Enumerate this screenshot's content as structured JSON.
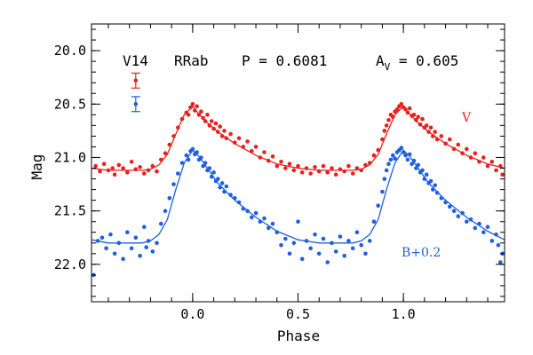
{
  "header": {
    "star": "V14",
    "type": "RRab",
    "period_text": "P = 0.6081",
    "amp_prefix": "A",
    "amp_sub": "V",
    "amp_value": " = 0.605"
  },
  "chart_data": {
    "type": "scatter",
    "xlabel": "Phase",
    "ylabel": "Mag",
    "xlim": [
      -0.48,
      1.48
    ],
    "ylim": [
      22.35,
      19.75
    ],
    "y_inverted": true,
    "x_ticks": [
      0.0,
      0.5,
      1.0
    ],
    "x_tick_labels": [
      "0.0",
      "0.5",
      "1.0"
    ],
    "x_minor_step": 0.1,
    "y_ticks": [
      20.0,
      20.5,
      21.0,
      21.5,
      22.0
    ],
    "y_tick_labels": [
      "20.0",
      "20.5",
      "21.0",
      "21.5",
      "22.0"
    ],
    "y_minor_step": 0.1,
    "legend_placement": "top-left",
    "series": [
      {
        "name": "V",
        "label": "V",
        "color": "#e8211c",
        "offset": 0.0,
        "curve": {
          "phase": [
            0.0,
            0.02,
            0.06,
            0.12,
            0.2,
            0.3,
            0.4,
            0.5,
            0.6,
            0.7,
            0.76,
            0.8,
            0.84,
            0.88,
            0.92,
            0.96,
            1.0
          ],
          "mag": [
            20.52,
            20.57,
            20.66,
            20.76,
            20.87,
            20.98,
            21.06,
            21.1,
            21.12,
            21.12,
            21.12,
            21.11,
            21.07,
            20.97,
            20.78,
            20.6,
            20.52
          ]
        },
        "error_bar": {
          "x": -0.27,
          "y": 20.28,
          "err": 0.07
        },
        "points": [
          [
            -0.46,
            21.08
          ],
          [
            -0.44,
            21.13
          ],
          [
            -0.42,
            21.06
          ],
          [
            -0.4,
            21.12
          ],
          [
            -0.38,
            21.1
          ],
          [
            -0.37,
            21.16
          ],
          [
            -0.35,
            21.07
          ],
          [
            -0.33,
            21.1
          ],
          [
            -0.31,
            21.14
          ],
          [
            -0.29,
            21.04
          ],
          [
            -0.27,
            21.11
          ],
          [
            -0.25,
            21.09
          ],
          [
            -0.23,
            21.15
          ],
          [
            -0.21,
            21.12
          ],
          [
            -0.19,
            21.08
          ],
          [
            -0.17,
            21.13
          ],
          [
            -0.15,
            21.02
          ],
          [
            -0.13,
            20.96
          ],
          [
            -0.11,
            20.88
          ],
          [
            -0.09,
            20.8
          ],
          [
            -0.07,
            20.72
          ],
          [
            -0.05,
            20.64
          ],
          [
            -0.03,
            20.58
          ],
          [
            -0.02,
            20.6
          ],
          [
            -0.01,
            20.53
          ],
          [
            0.0,
            20.5
          ],
          [
            0.01,
            20.56
          ],
          [
            0.02,
            20.52
          ],
          [
            0.03,
            20.6
          ],
          [
            0.04,
            20.57
          ],
          [
            0.05,
            20.63
          ],
          [
            0.06,
            20.66
          ],
          [
            0.07,
            20.6
          ],
          [
            0.08,
            20.7
          ],
          [
            0.09,
            20.66
          ],
          [
            0.1,
            20.73
          ],
          [
            0.11,
            20.68
          ],
          [
            0.12,
            20.76
          ],
          [
            0.13,
            20.71
          ],
          [
            0.14,
            20.8
          ],
          [
            0.15,
            20.75
          ],
          [
            0.16,
            20.82
          ],
          [
            0.18,
            20.78
          ],
          [
            0.2,
            20.86
          ],
          [
            0.22,
            20.82
          ],
          [
            0.24,
            20.9
          ],
          [
            0.26,
            20.85
          ],
          [
            0.28,
            20.94
          ],
          [
            0.3,
            20.9
          ],
          [
            0.32,
            21.0
          ],
          [
            0.34,
            20.95
          ],
          [
            0.36,
            21.03
          ],
          [
            0.38,
            20.99
          ],
          [
            0.4,
            21.08
          ],
          [
            0.42,
            21.04
          ],
          [
            0.44,
            21.1
          ],
          [
            0.46,
            21.06
          ],
          [
            0.48,
            21.12
          ],
          [
            0.5,
            21.08
          ],
          [
            0.52,
            21.14
          ],
          [
            0.54,
            21.1
          ],
          [
            0.56,
            21.15
          ],
          [
            0.58,
            21.09
          ],
          [
            0.6,
            21.13
          ],
          [
            0.62,
            21.08
          ],
          [
            0.64,
            21.14
          ],
          [
            0.66,
            21.1
          ],
          [
            0.68,
            21.16
          ],
          [
            0.7,
            21.11
          ],
          [
            0.72,
            21.13
          ],
          [
            0.74,
            21.08
          ],
          [
            0.76,
            21.15
          ],
          [
            0.78,
            21.1
          ],
          [
            0.8,
            21.12
          ],
          [
            0.82,
            21.07
          ],
          [
            0.84,
            21.05
          ],
          [
            0.86,
            20.98
          ],
          [
            0.88,
            20.93
          ],
          [
            0.9,
            20.83
          ],
          [
            0.91,
            20.75
          ],
          [
            0.92,
            20.7
          ],
          [
            0.93,
            20.65
          ],
          [
            0.94,
            20.6
          ],
          [
            0.95,
            20.62
          ],
          [
            0.96,
            20.57
          ],
          [
            0.97,
            20.55
          ],
          [
            0.98,
            20.52
          ],
          [
            0.99,
            20.5
          ],
          [
            1.0,
            20.53
          ],
          [
            1.01,
            20.55
          ],
          [
            1.02,
            20.58
          ],
          [
            1.03,
            20.54
          ],
          [
            1.04,
            20.61
          ],
          [
            1.05,
            20.6
          ],
          [
            1.06,
            20.65
          ],
          [
            1.07,
            20.62
          ],
          [
            1.08,
            20.69
          ],
          [
            1.09,
            20.64
          ],
          [
            1.1,
            20.72
          ],
          [
            1.11,
            20.7
          ],
          [
            1.12,
            20.76
          ],
          [
            1.13,
            20.72
          ],
          [
            1.14,
            20.8
          ],
          [
            1.15,
            20.76
          ],
          [
            1.16,
            20.83
          ],
          [
            1.18,
            20.8
          ],
          [
            1.2,
            20.87
          ],
          [
            1.22,
            20.83
          ],
          [
            1.24,
            20.92
          ],
          [
            1.26,
            20.88
          ],
          [
            1.28,
            20.96
          ],
          [
            1.3,
            20.92
          ],
          [
            1.32,
            21.0
          ],
          [
            1.34,
            20.96
          ],
          [
            1.36,
            21.04
          ],
          [
            1.38,
            21.0
          ],
          [
            1.4,
            21.08
          ],
          [
            1.42,
            21.04
          ],
          [
            1.44,
            21.12
          ],
          [
            1.46,
            21.08
          ],
          [
            1.47,
            21.16
          ]
        ]
      },
      {
        "name": "B",
        "label": "B+0.2",
        "color": "#1f5fe0",
        "offset": 0.2,
        "curve": {
          "phase": [
            0.0,
            0.03,
            0.07,
            0.12,
            0.2,
            0.3,
            0.4,
            0.5,
            0.6,
            0.7,
            0.76,
            0.8,
            0.84,
            0.88,
            0.92,
            0.96,
            1.0
          ],
          "mag": [
            20.93,
            20.99,
            21.1,
            21.24,
            21.4,
            21.56,
            21.69,
            21.77,
            21.8,
            21.8,
            21.8,
            21.78,
            21.72,
            21.58,
            21.3,
            21.05,
            20.93
          ]
        },
        "error_bar": {
          "x": -0.27,
          "y": 20.5,
          "err": 0.07
        },
        "points": [
          [
            -0.47,
            22.1
          ],
          [
            -0.45,
            21.78
          ],
          [
            -0.43,
            21.75
          ],
          [
            -0.41,
            21.85
          ],
          [
            -0.39,
            21.72
          ],
          [
            -0.37,
            21.9
          ],
          [
            -0.35,
            21.8
          ],
          [
            -0.33,
            21.95
          ],
          [
            -0.31,
            21.7
          ],
          [
            -0.29,
            21.85
          ],
          [
            -0.27,
            21.75
          ],
          [
            -0.25,
            21.92
          ],
          [
            -0.23,
            21.65
          ],
          [
            -0.22,
            21.84
          ],
          [
            -0.21,
            21.78
          ],
          [
            -0.19,
            21.88
          ],
          [
            -0.17,
            21.8
          ],
          [
            -0.15,
            21.62
          ],
          [
            -0.13,
            21.5
          ],
          [
            -0.11,
            21.38
          ],
          [
            -0.09,
            21.25
          ],
          [
            -0.07,
            21.15
          ],
          [
            -0.05,
            21.05
          ],
          [
            -0.03,
            20.98
          ],
          [
            -0.02,
            21.02
          ],
          [
            -0.01,
            20.94
          ],
          [
            0.0,
            20.92
          ],
          [
            0.01,
            20.97
          ],
          [
            0.02,
            20.95
          ],
          [
            0.03,
            21.02
          ],
          [
            0.04,
            21.0
          ],
          [
            0.05,
            21.08
          ],
          [
            0.06,
            21.05
          ],
          [
            0.07,
            21.12
          ],
          [
            0.08,
            21.1
          ],
          [
            0.09,
            21.18
          ],
          [
            0.1,
            21.14
          ],
          [
            0.11,
            21.22
          ],
          [
            0.12,
            21.2
          ],
          [
            0.13,
            21.28
          ],
          [
            0.14,
            21.24
          ],
          [
            0.15,
            21.32
          ],
          [
            0.16,
            21.27
          ],
          [
            0.18,
            21.35
          ],
          [
            0.2,
            21.38
          ],
          [
            0.22,
            21.42
          ],
          [
            0.24,
            21.48
          ],
          [
            0.26,
            21.5
          ],
          [
            0.28,
            21.56
          ],
          [
            0.3,
            21.52
          ],
          [
            0.32,
            21.6
          ],
          [
            0.34,
            21.57
          ],
          [
            0.36,
            21.66
          ],
          [
            0.38,
            21.62
          ],
          [
            0.4,
            21.7
          ],
          [
            0.42,
            21.82
          ],
          [
            0.44,
            21.76
          ],
          [
            0.46,
            21.9
          ],
          [
            0.48,
            21.8
          ],
          [
            0.5,
            21.6
          ],
          [
            0.52,
            21.95
          ],
          [
            0.54,
            21.78
          ],
          [
            0.56,
            21.85
          ],
          [
            0.58,
            21.72
          ],
          [
            0.6,
            21.9
          ],
          [
            0.62,
            21.76
          ],
          [
            0.64,
            21.98
          ],
          [
            0.66,
            21.8
          ],
          [
            0.68,
            21.88
          ],
          [
            0.7,
            21.74
          ],
          [
            0.72,
            21.92
          ],
          [
            0.74,
            21.78
          ],
          [
            0.76,
            21.85
          ],
          [
            0.78,
            21.7
          ],
          [
            0.8,
            21.82
          ],
          [
            0.82,
            21.9
          ],
          [
            0.84,
            21.78
          ],
          [
            0.86,
            21.6
          ],
          [
            0.88,
            21.45
          ],
          [
            0.9,
            21.32
          ],
          [
            0.91,
            21.2
          ],
          [
            0.92,
            21.12
          ],
          [
            0.93,
            21.06
          ],
          [
            0.94,
            21.02
          ],
          [
            0.95,
            20.98
          ],
          [
            0.96,
            21.01
          ],
          [
            0.97,
            20.95
          ],
          [
            0.98,
            20.93
          ],
          [
            0.99,
            20.91
          ],
          [
            1.0,
            20.95
          ],
          [
            1.01,
            20.98
          ],
          [
            1.02,
            21.02
          ],
          [
            1.03,
            20.97
          ],
          [
            1.04,
            21.06
          ],
          [
            1.05,
            21.03
          ],
          [
            1.06,
            21.1
          ],
          [
            1.07,
            21.07
          ],
          [
            1.08,
            21.14
          ],
          [
            1.09,
            21.12
          ],
          [
            1.1,
            21.2
          ],
          [
            1.11,
            21.16
          ],
          [
            1.12,
            21.24
          ],
          [
            1.13,
            21.22
          ],
          [
            1.14,
            21.3
          ],
          [
            1.15,
            21.26
          ],
          [
            1.16,
            21.33
          ],
          [
            1.18,
            21.38
          ],
          [
            1.2,
            21.42
          ],
          [
            1.22,
            21.46
          ],
          [
            1.24,
            21.5
          ],
          [
            1.26,
            21.55
          ],
          [
            1.28,
            21.52
          ],
          [
            1.3,
            21.6
          ],
          [
            1.32,
            21.58
          ],
          [
            1.34,
            21.66
          ],
          [
            1.36,
            21.62
          ],
          [
            1.38,
            21.7
          ],
          [
            1.4,
            21.65
          ],
          [
            1.42,
            21.78
          ],
          [
            1.44,
            21.72
          ],
          [
            1.45,
            21.82
          ],
          [
            1.46,
            21.98
          ],
          [
            1.47,
            21.9
          ]
        ]
      }
    ]
  }
}
